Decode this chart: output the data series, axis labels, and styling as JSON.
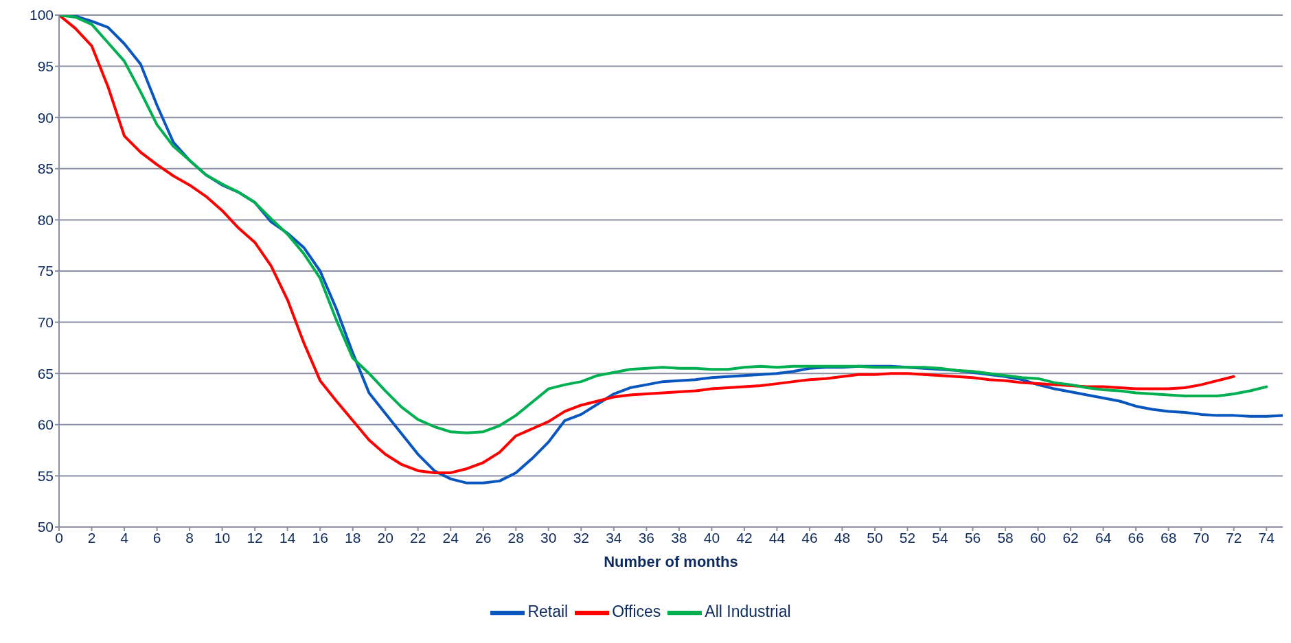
{
  "chart_data": {
    "type": "line",
    "xlabel": "Number of months",
    "x": [
      0,
      1,
      2,
      3,
      4,
      5,
      6,
      7,
      8,
      9,
      10,
      11,
      12,
      13,
      14,
      15,
      16,
      17,
      18,
      19,
      20,
      21,
      22,
      23,
      24,
      25,
      26,
      27,
      28,
      29,
      30,
      31,
      32,
      33,
      34,
      35,
      36,
      37,
      38,
      39,
      40,
      41,
      42,
      43,
      44,
      45,
      46,
      47,
      48,
      49,
      50,
      51,
      52,
      53,
      54,
      55,
      56,
      57,
      58,
      59,
      60,
      61,
      62,
      63,
      64,
      65,
      66,
      67,
      68,
      69,
      70,
      71,
      72,
      73,
      74,
      75
    ],
    "series": [
      {
        "name": "Retail",
        "color": "#0a56bf",
        "values": [
          100,
          99.9,
          99.4,
          98.8,
          97.2,
          95.2,
          91.2,
          87.6,
          85.8,
          84.4,
          83.4,
          82.7,
          81.7,
          79.8,
          78.7,
          77.3,
          75.0,
          71.3,
          67.0,
          63.1,
          61.1,
          59.1,
          57.1,
          55.5,
          54.7,
          54.3,
          54.3,
          54.5,
          55.3,
          56.7,
          58.3,
          60.4,
          61.0,
          62.0,
          63.0,
          63.6,
          63.9,
          64.2,
          64.3,
          64.4,
          64.6,
          64.7,
          64.8,
          64.9,
          65.0,
          65.2,
          65.5,
          65.6,
          65.6,
          65.7,
          65.7,
          65.7,
          65.6,
          65.5,
          65.4,
          65.3,
          65.1,
          64.9,
          64.7,
          64.4,
          63.9,
          63.5,
          63.2,
          62.9,
          62.6,
          62.3,
          61.8,
          61.5,
          61.3,
          61.2,
          61.0,
          60.9,
          60.9,
          60.8,
          60.8,
          60.9
        ]
      },
      {
        "name": "Offices",
        "color": "#ff0000",
        "values": [
          100,
          98.7,
          97.0,
          93.0,
          88.2,
          86.6,
          85.4,
          84.3,
          83.4,
          82.3,
          80.9,
          79.2,
          77.8,
          75.5,
          72.2,
          68.0,
          64.3,
          62.3,
          60.4,
          58.5,
          57.1,
          56.1,
          55.5,
          55.3,
          55.3,
          55.7,
          56.3,
          57.3,
          58.9,
          59.6,
          60.3,
          61.3,
          61.9,
          62.3,
          62.7,
          62.9,
          63.0,
          63.1,
          63.2,
          63.3,
          63.5,
          63.6,
          63.7,
          63.8,
          64.0,
          64.2,
          64.4,
          64.5,
          64.7,
          64.9,
          64.9,
          65.0,
          65.0,
          64.9,
          64.8,
          64.7,
          64.6,
          64.4,
          64.3,
          64.1,
          64.0,
          63.9,
          63.8,
          63.7,
          63.7,
          63.6,
          63.5,
          63.5,
          63.5,
          63.6,
          63.9,
          64.3,
          64.7,
          null,
          null,
          null
        ]
      },
      {
        "name": "All Industrial",
        "color": "#00b050",
        "values": [
          100,
          99.8,
          99.1,
          97.3,
          95.5,
          92.5,
          89.3,
          87.2,
          85.8,
          84.4,
          83.5,
          82.7,
          81.7,
          80.1,
          78.6,
          76.7,
          74.3,
          70.2,
          66.5,
          65.0,
          63.3,
          61.7,
          60.5,
          59.8,
          59.3,
          59.2,
          59.3,
          59.9,
          60.9,
          62.2,
          63.5,
          63.9,
          64.2,
          64.8,
          65.1,
          65.4,
          65.5,
          65.6,
          65.5,
          65.5,
          65.4,
          65.4,
          65.6,
          65.7,
          65.6,
          65.7,
          65.7,
          65.7,
          65.7,
          65.7,
          65.6,
          65.6,
          65.6,
          65.6,
          65.5,
          65.3,
          65.2,
          65.0,
          64.8,
          64.6,
          64.5,
          64.1,
          63.9,
          63.6,
          63.4,
          63.3,
          63.1,
          63.0,
          62.9,
          62.8,
          62.8,
          62.8,
          63.0,
          63.3,
          63.7,
          null
        ]
      }
    ],
    "xlim": [
      0,
      75
    ],
    "xticks": [
      0,
      2,
      4,
      6,
      8,
      10,
      12,
      14,
      16,
      18,
      20,
      22,
      24,
      26,
      28,
      30,
      32,
      34,
      36,
      38,
      40,
      42,
      44,
      46,
      48,
      50,
      52,
      54,
      56,
      58,
      60,
      62,
      64,
      66,
      68,
      70,
      72,
      74
    ],
    "ylim": [
      50,
      100
    ],
    "yticks": [
      50,
      55,
      60,
      65,
      70,
      75,
      80,
      85,
      90,
      95,
      100
    ],
    "grid": "y",
    "legend": "bottom",
    "marker": "none",
    "line_style": "solid"
  }
}
